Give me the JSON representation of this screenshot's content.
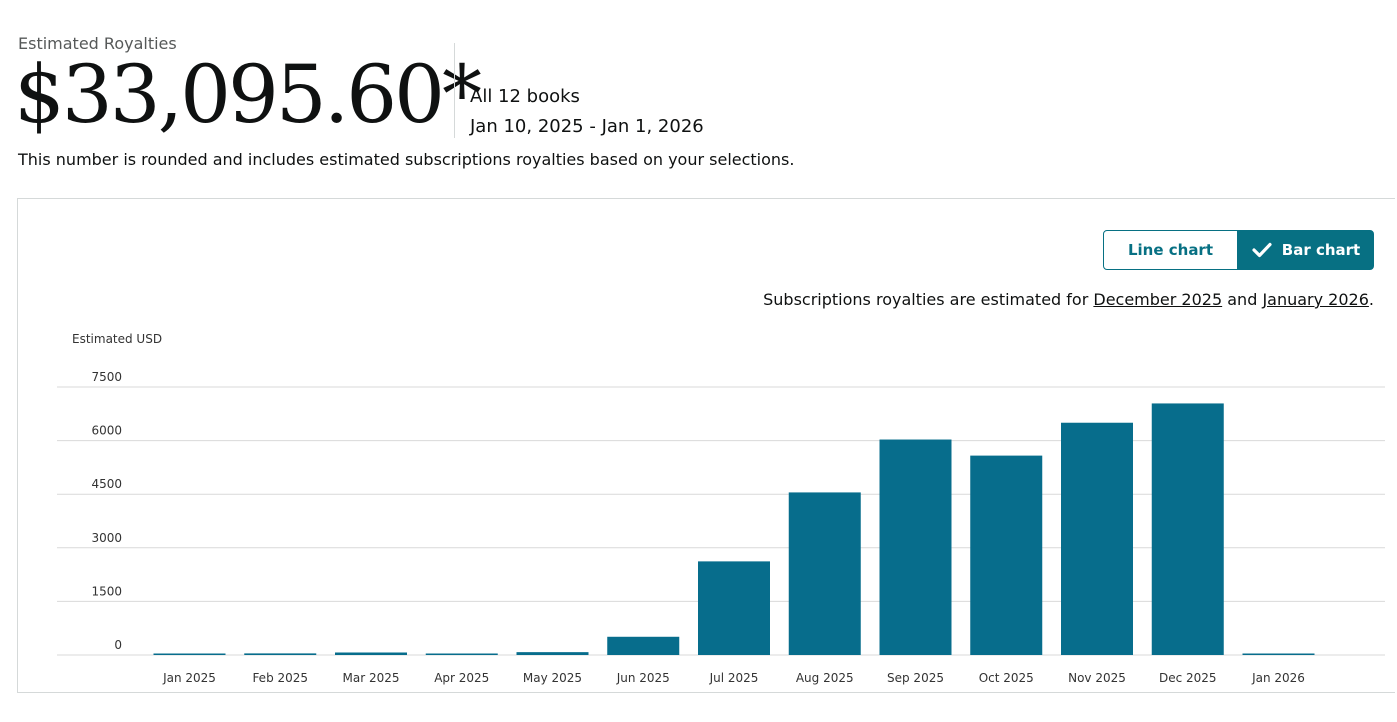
{
  "header": {
    "label": "Estimated Royalties",
    "amount": "$33,095.60*",
    "books": "All 12 books",
    "date_range": "Jan 10, 2025 - Jan 1, 2026",
    "note": "This number is rounded and includes estimated subscriptions royalties based on your selections."
  },
  "controls": {
    "line_chart": "Line chart",
    "bar_chart": "Bar chart",
    "selected": "bar"
  },
  "subscriptions_note": {
    "prefix": "Subscriptions royalties are estimated for ",
    "link1": "December 2025",
    "middle": " and ",
    "link2": "January 2026",
    "suffix": "."
  },
  "colors": {
    "bar": "#076d8c",
    "accent": "#077083",
    "grid": "#d9d9d9"
  },
  "chart_data": {
    "type": "bar",
    "ylabel": "Estimated USD",
    "ylim": [
      0,
      7500
    ],
    "yticks": [
      0,
      1500,
      3000,
      4500,
      6000,
      7500
    ],
    "categories": [
      "Jan 2025",
      "Feb 2025",
      "Mar 2025",
      "Apr 2025",
      "May 2025",
      "Jun 2025",
      "Jul 2025",
      "Aug 2025",
      "Sep 2025",
      "Oct 2025",
      "Nov 2025",
      "Dec 2025",
      "Jan 2026"
    ],
    "values": [
      40,
      45,
      70,
      30,
      80,
      510,
      2620,
      4550,
      6030,
      5580,
      6500,
      7040,
      0
    ],
    "grid": true
  }
}
